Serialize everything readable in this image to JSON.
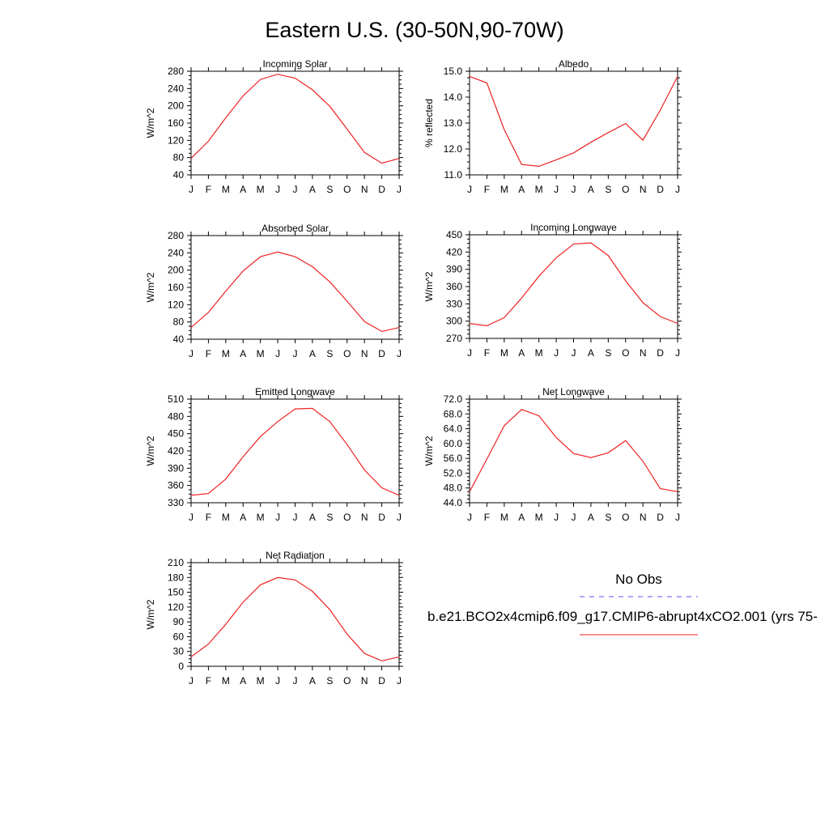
{
  "figure": {
    "title": "Eastern U.S. (30-50N,90-70W)",
    "legend": {
      "obs_label": "No Obs",
      "model_label": "b.e21.BCO2x4cmip6.f09_g17.CMIP6-abrupt4xCO2.001 (yrs 75-",
      "obs_color": "#5555ee",
      "model_color": "#ee2222"
    }
  },
  "chart_data": [
    {
      "type": "line",
      "title": "Incoming Solar",
      "ylabel": "W/m^2",
      "xlabel": "",
      "categories": [
        "J",
        "F",
        "M",
        "A",
        "M",
        "J",
        "J",
        "A",
        "S",
        "O",
        "N",
        "D",
        "J"
      ],
      "ylim": [
        40,
        280
      ],
      "yticks": [
        "280",
        "240",
        "200",
        "160",
        "120",
        "80",
        "40"
      ],
      "grid": false,
      "series": [
        {
          "values": [
            78,
            118,
            172,
            223,
            261,
            273,
            264,
            237,
            199,
            146,
            92,
            67,
            78
          ]
        }
      ]
    },
    {
      "type": "line",
      "title": "Albedo",
      "ylabel": "% reflected",
      "xlabel": "",
      "categories": [
        "J",
        "F",
        "M",
        "A",
        "M",
        "J",
        "J",
        "A",
        "S",
        "O",
        "N",
        "D",
        "J"
      ],
      "ylim": [
        11.0,
        15.0
      ],
      "yticks": [
        "15.0",
        "14.0",
        "13.0",
        "12.0",
        "11.0"
      ],
      "grid": false,
      "series": [
        {
          "values": [
            14.8,
            14.55,
            12.75,
            11.4,
            11.33,
            11.58,
            11.85,
            12.26,
            12.63,
            12.98,
            12.34,
            13.5,
            14.8
          ]
        }
      ]
    },
    {
      "type": "line",
      "title": "Absorbed Solar",
      "ylabel": "W/m^2",
      "xlabel": "",
      "categories": [
        "J",
        "F",
        "M",
        "A",
        "M",
        "J",
        "J",
        "A",
        "S",
        "O",
        "N",
        "D",
        "J"
      ],
      "ylim": [
        40,
        280
      ],
      "yticks": [
        "280",
        "240",
        "200",
        "160",
        "120",
        "80",
        "40"
      ],
      "grid": false,
      "series": [
        {
          "values": [
            67,
            102,
            151,
            198,
            231,
            242,
            231,
            208,
            173,
            128,
            81,
            58,
            67
          ]
        }
      ]
    },
    {
      "type": "line",
      "title": "Incoming Longwave",
      "ylabel": "W/m^2",
      "xlabel": "",
      "categories": [
        "J",
        "F",
        "M",
        "A",
        "M",
        "J",
        "J",
        "A",
        "S",
        "O",
        "N",
        "D",
        "J"
      ],
      "ylim": [
        270,
        450
      ],
      "yticks": [
        "450",
        "420",
        "390",
        "360",
        "330",
        "300",
        "270"
      ],
      "grid": false,
      "series": [
        {
          "values": [
            296,
            292,
            306,
            340,
            378,
            410,
            434,
            436,
            414,
            370,
            332,
            308,
            296
          ]
        }
      ]
    },
    {
      "type": "line",
      "title": "Emitted Longwave",
      "ylabel": "W/m^2",
      "xlabel": "",
      "categories": [
        "J",
        "F",
        "M",
        "A",
        "M",
        "J",
        "J",
        "A",
        "S",
        "O",
        "N",
        "D",
        "J"
      ],
      "ylim": [
        330,
        510
      ],
      "yticks": [
        "510",
        "480",
        "450",
        "420",
        "390",
        "360",
        "330"
      ],
      "grid": false,
      "series": [
        {
          "values": [
            343,
            346,
            371,
            410,
            445,
            471,
            493,
            494,
            471,
            431,
            387,
            356,
            343
          ]
        }
      ]
    },
    {
      "type": "line",
      "title": "Net Longwave",
      "ylabel": "W/m^2",
      "xlabel": "",
      "categories": [
        "J",
        "F",
        "M",
        "A",
        "M",
        "J",
        "J",
        "A",
        "S",
        "O",
        "N",
        "D",
        "J"
      ],
      "ylim": [
        44.0,
        72.0
      ],
      "yticks": [
        "72.0",
        "68.0",
        "64.0",
        "60.0",
        "56.0",
        "52.0",
        "48.0",
        "44.0"
      ],
      "grid": false,
      "series": [
        {
          "values": [
            47.0,
            55.8,
            64.8,
            69.2,
            67.5,
            61.6,
            57.3,
            56.2,
            57.5,
            60.8,
            55.2,
            47.8,
            47.0
          ]
        }
      ]
    },
    {
      "type": "line",
      "title": "Net Radiation",
      "ylabel": "W/m^2",
      "xlabel": "",
      "categories": [
        "J",
        "F",
        "M",
        "A",
        "M",
        "J",
        "J",
        "A",
        "S",
        "O",
        "N",
        "D",
        "J"
      ],
      "ylim": [
        0,
        210
      ],
      "yticks": [
        "210",
        "180",
        "150",
        "120",
        "90",
        "60",
        "30",
        "0"
      ],
      "grid": false,
      "series": [
        {
          "values": [
            19,
            45,
            85,
            130,
            165,
            180,
            175,
            152,
            115,
            65,
            26,
            11,
            19
          ]
        }
      ]
    }
  ]
}
